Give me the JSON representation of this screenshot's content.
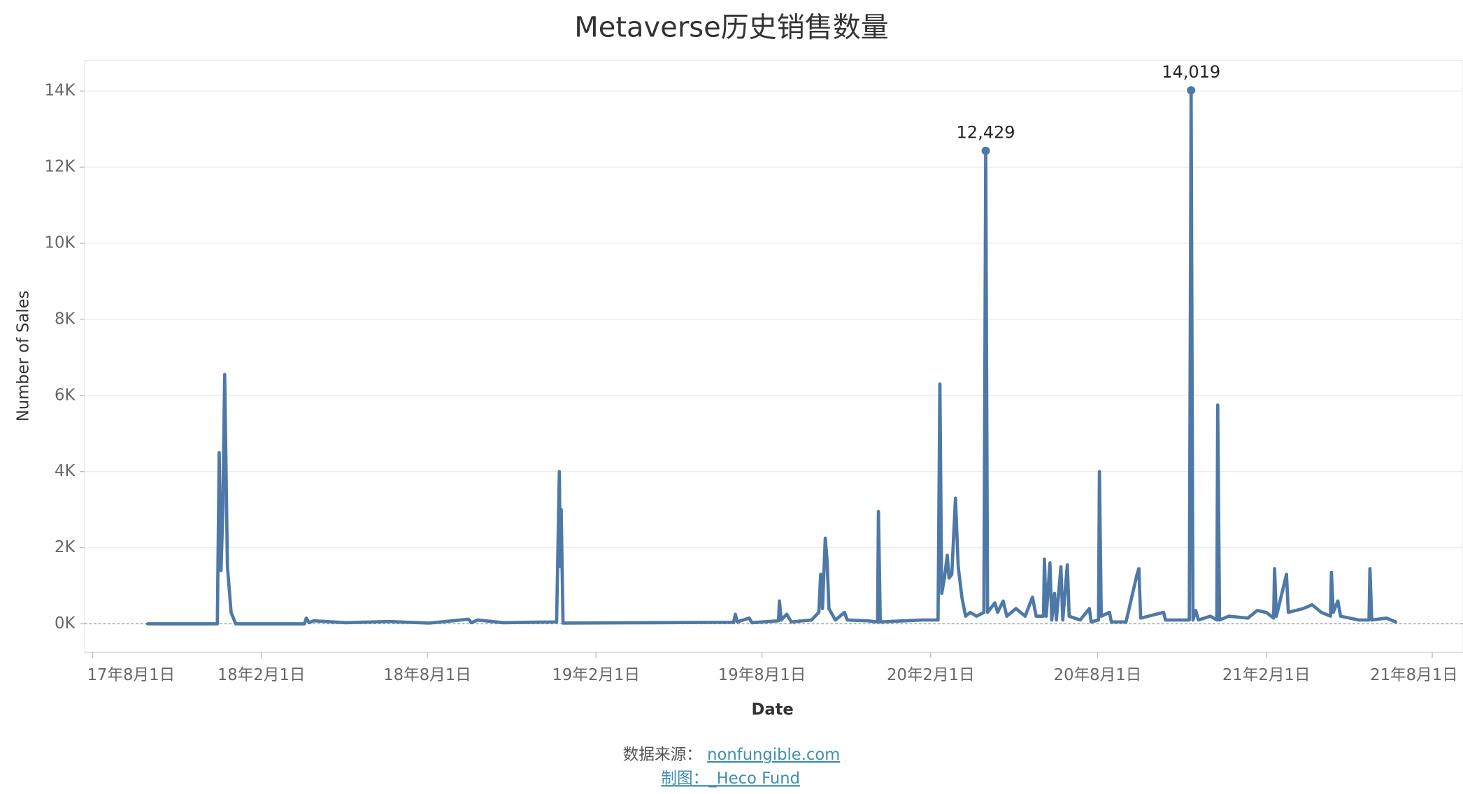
{
  "chart_data": {
    "type": "line",
    "title": "Metaverse历史销售数量",
    "x_label": "Date",
    "y_label": "Number of Sales",
    "source_label": "数据来源：",
    "source_link": "nonfungible.com",
    "credit": "制图：_Heco Fund",
    "xlim": [
      "2017-07-23",
      "2021-09-03"
    ],
    "ylim": [
      -750,
      14800
    ],
    "grid": true,
    "xticks": [
      {
        "value": "2017-08-01",
        "label": "17年8月1日"
      },
      {
        "value": "2018-02-01",
        "label": "18年2月1日"
      },
      {
        "value": "2018-08-01",
        "label": "18年8月1日"
      },
      {
        "value": "2019-02-01",
        "label": "19年2月1日"
      },
      {
        "value": "2019-08-01",
        "label": "19年8月1日"
      },
      {
        "value": "2020-02-01",
        "label": "20年2月1日"
      },
      {
        "value": "2020-08-01",
        "label": "20年8月1日"
      },
      {
        "value": "2021-02-01",
        "label": "21年2月1日"
      },
      {
        "value": "2021-08-01",
        "label": "21年8月1日"
      }
    ],
    "yticks": [
      {
        "value": 0,
        "label": "0K"
      },
      {
        "value": 2000,
        "label": "2K"
      },
      {
        "value": 4000,
        "label": "4K"
      },
      {
        "value": 6000,
        "label": "6K"
      },
      {
        "value": 8000,
        "label": "8K"
      },
      {
        "value": 10000,
        "label": "10K"
      },
      {
        "value": 12000,
        "label": "12K"
      },
      {
        "value": 14000,
        "label": "14K"
      }
    ],
    "x": [
      "2017-09-30",
      "2017-12-15",
      "2017-12-17",
      "2017-12-19",
      "2017-12-21",
      "2017-12-23",
      "2017-12-26",
      "2017-12-30",
      "2018-01-04",
      "2018-03-20",
      "2018-03-22",
      "2018-03-25",
      "2018-03-30",
      "2018-05-04",
      "2018-06-20",
      "2018-08-03",
      "2018-09-15",
      "2018-09-18",
      "2018-09-25",
      "2018-10-23",
      "2018-12-20",
      "2018-12-23",
      "2018-12-24",
      "2018-12-25",
      "2018-12-27",
      "2019-04-04",
      "2019-07-01",
      "2019-07-03",
      "2019-07-05",
      "2019-07-18",
      "2019-07-21",
      "2019-08-19",
      "2019-08-20",
      "2019-08-22",
      "2019-08-28",
      "2019-09-02",
      "2019-09-24",
      "2019-10-02",
      "2019-10-04",
      "2019-10-06",
      "2019-10-09",
      "2019-10-11",
      "2019-10-13",
      "2019-10-20",
      "2019-10-30",
      "2019-11-02",
      "2019-11-24",
      "2019-12-05",
      "2019-12-06",
      "2019-12-08",
      "2020-01-23",
      "2020-02-09",
      "2020-02-11",
      "2020-02-13",
      "2020-02-16",
      "2020-02-19",
      "2020-02-21",
      "2020-02-24",
      "2020-02-28",
      "2020-03-02",
      "2020-03-06",
      "2020-03-10",
      "2020-03-15",
      "2020-03-22",
      "2020-03-30",
      "2020-04-01",
      "2020-04-03",
      "2020-04-11",
      "2020-04-14",
      "2020-04-20",
      "2020-04-24",
      "2020-05-04",
      "2020-05-14",
      "2020-05-22",
      "2020-05-26",
      "2020-06-03",
      "2020-06-04",
      "2020-06-06",
      "2020-06-10",
      "2020-06-12",
      "2020-06-15",
      "2020-06-17",
      "2020-06-22",
      "2020-06-24",
      "2020-06-29",
      "2020-07-01",
      "2020-07-13",
      "2020-07-23",
      "2020-07-25",
      "2020-08-02",
      "2020-08-03",
      "2020-08-05",
      "2020-08-14",
      "2020-08-16",
      "2020-09-01",
      "2020-09-13",
      "2020-09-15",
      "2020-09-17",
      "2020-10-12",
      "2020-10-14",
      "2020-11-09",
      "2020-11-11",
      "2020-11-13",
      "2020-11-16",
      "2020-11-19",
      "2020-12-02",
      "2020-12-09",
      "2020-12-10",
      "2020-12-12",
      "2020-12-22",
      "2021-01-12",
      "2021-01-22",
      "2021-02-01",
      "2021-02-09",
      "2021-02-10",
      "2021-02-12",
      "2021-02-23",
      "2021-02-25",
      "2021-03-13",
      "2021-03-23",
      "2021-04-02",
      "2021-04-12",
      "2021-04-13",
      "2021-04-15",
      "2021-04-20",
      "2021-04-23",
      "2021-05-13",
      "2021-05-24",
      "2021-05-25",
      "2021-05-27",
      "2021-06-12",
      "2021-06-22"
    ],
    "series": [
      {
        "name": "Number of Sales",
        "color": "#4e79a7",
        "values": [
          0,
          0,
          4500,
          1400,
          3000,
          6550,
          1500,
          300,
          0,
          0,
          150,
          30,
          80,
          30,
          60,
          20,
          120,
          30,
          100,
          30,
          50,
          4000,
          1500,
          3000,
          20,
          30,
          40,
          250,
          50,
          150,
          30,
          80,
          600,
          100,
          250,
          50,
          100,
          300,
          1300,
          400,
          2250,
          1650,
          400,
          100,
          300,
          100,
          80,
          50,
          2950,
          50,
          100,
          100,
          6300,
          800,
          1200,
          1800,
          1200,
          1300,
          3300,
          1500,
          700,
          200,
          300,
          200,
          300,
          12429,
          300,
          550,
          300,
          600,
          200,
          400,
          200,
          700,
          200,
          200,
          1700,
          200,
          1600,
          100,
          800,
          100,
          1500,
          100,
          1550,
          200,
          100,
          400,
          50,
          100,
          4000,
          200,
          300,
          50,
          50,
          1300,
          1450,
          150,
          300,
          100,
          100,
          14019,
          100,
          350,
          100,
          200,
          100,
          5750,
          100,
          200,
          150,
          350,
          300,
          150,
          1450,
          200,
          1300,
          300,
          400,
          500,
          300,
          200,
          1350,
          300,
          600,
          200,
          100,
          100,
          1450,
          100,
          150,
          50
        ],
        "value_labels": [
          null,
          null,
          null,
          null,
          null,
          null,
          null,
          null,
          null,
          null,
          null,
          null,
          null,
          null,
          null,
          null,
          null,
          null,
          null,
          null,
          null,
          null,
          null,
          null,
          null,
          null,
          null,
          null,
          null,
          null,
          null,
          null,
          null,
          null,
          null,
          null,
          null,
          null,
          null,
          null,
          null,
          null,
          null,
          null,
          null,
          null,
          null,
          null,
          null,
          null,
          null,
          null,
          null,
          null,
          null,
          null,
          null,
          null,
          null,
          null,
          null,
          null,
          null,
          null,
          null,
          "12,429",
          null,
          null,
          null,
          null,
          null,
          null,
          null,
          null,
          null,
          null,
          null,
          null,
          null,
          null,
          null,
          null,
          null,
          null,
          null,
          null,
          null,
          null,
          null,
          null,
          null,
          null,
          null,
          null,
          null,
          null,
          null,
          null,
          null,
          null,
          null,
          "14,019",
          null,
          null,
          null,
          null,
          null,
          null,
          null,
          null,
          null,
          null,
          null,
          null,
          null,
          null,
          null,
          null,
          null,
          null,
          null,
          null,
          null,
          null,
          null,
          null,
          null,
          null,
          null,
          null,
          null,
          null
        ]
      }
    ]
  }
}
